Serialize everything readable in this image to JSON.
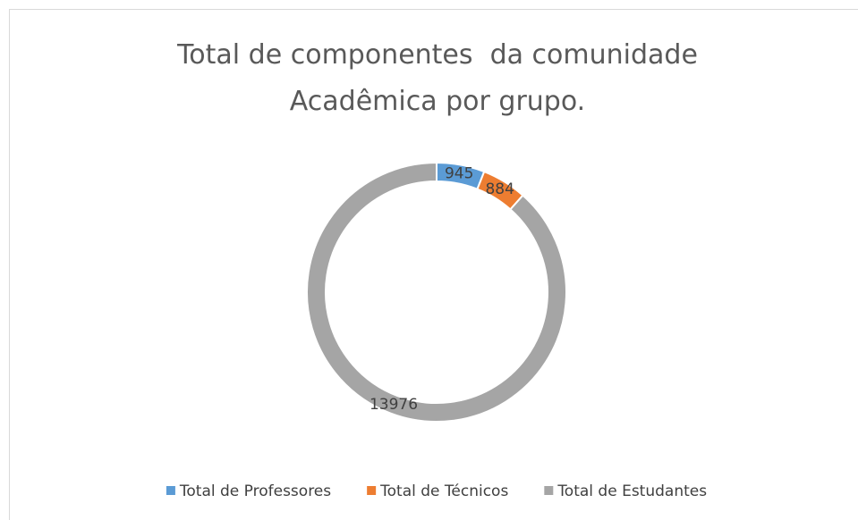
{
  "chart_data": {
    "type": "donut",
    "title": "Total de componentes  da comunidade Acadêmica por grupo.",
    "categories": [
      "Total de Professores",
      "Total de Técnicos",
      "Total de Estudantes"
    ],
    "values": [
      945,
      884,
      13976
    ],
    "colors": [
      "#5b9bd5",
      "#ed7d31",
      "#a5a5a5"
    ],
    "legend": "bottom"
  }
}
